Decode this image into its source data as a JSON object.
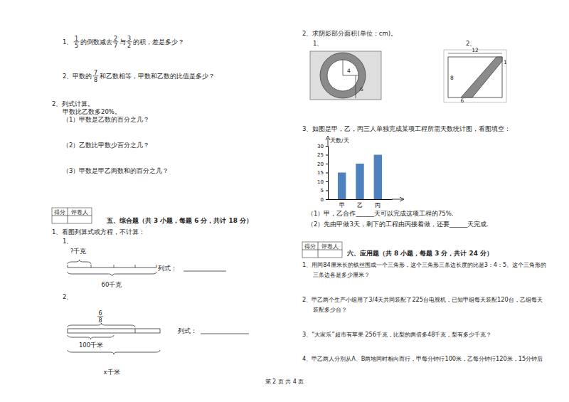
{
  "chart_data": {
    "type": "bar",
    "title": "天数/天",
    "categories": [
      "甲",
      "乙",
      "丙"
    ],
    "values": [
      15,
      20,
      25
    ],
    "color": "#4f81bd",
    "ylim": [
      0,
      30
    ],
    "yticks": [
      0,
      5,
      10,
      15,
      20,
      25,
      30
    ],
    "grid": false
  },
  "document": {
    "left": {
      "q1": [
        "1、",
        {
          "num": "1",
          "den": "5"
        },
        "的倒数减去",
        {
          "num": "2",
          "den": "7"
        },
        "与",
        {
          "num": "3",
          "den": "2"
        },
        "的积，差是多少？"
      ],
      "q2": [
        "2、甲数的",
        {
          "num": "7",
          "den": "8"
        },
        "和乙数相等，甲数和乙数的比值是多少？"
      ],
      "calc": {
        "title": "2、列式计算。",
        "given": "甲数比乙数多20%。",
        "items": [
          "（1）甲数是乙数的百分之几？",
          "（2）乙数比甲数少百分之几？",
          "（3）甲数是甲乙两数和的百分之几？"
        ]
      },
      "score_box": [
        "得分",
        "评卷人"
      ],
      "section": "五、综合题（共 3 小题，每题 6 分，共计 18 分）",
      "comp": {
        "intro": "1、看图列算式或方程，不计算：",
        "d1": {
          "num": "1、",
          "top": "?千克",
          "bottom": "60千克",
          "formula": "列式："
        },
        "d2": {
          "num": "2、",
          "frac": {
            "num": "6",
            "den": "8"
          },
          "mid": "100千米",
          "bottom": "x千米",
          "formula": "列式："
        }
      }
    },
    "right": {
      "shade": {
        "title": "2、求阴影部分面积(单位：cm)。",
        "n1": "1、",
        "n2": "2、",
        "f1": [
          "4",
          "6"
        ],
        "f2": [
          "12",
          "8",
          "6",
          "1"
        ]
      },
      "chart_q": {
        "title": "3、如图是甲，乙，丙三人单独完成某项工程所需天数统计图，看图填空：",
        "items": [
          "（1）甲，乙合作______天可以完成这项工程的75%.",
          "（2）先由甲做3天，剩下的工程由丙接着做，还要______天完成."
        ]
      },
      "score_box": [
        "得分",
        "评卷人"
      ],
      "section": "六、应用题（共 8 小题，每题 3 分，共计 24 分）",
      "apps": [
        [
          "1、用同84厘米长的铁丝围成一个三角形，这个三角形三条边长度的比是3：4：5。这个三角形的",
          "三条边各是多少厘米？"
        ],
        [
          "2、甲乙两个生产小组用了3/4天共同装配了225台电视机，已知甲组每天装配120台，乙组每天",
          "装配多少台？"
        ],
        [
          "3、“大家乐”超市有苹果 256千克，比梨的两倍多48千克，梨有多少千克？"
        ],
        [
          "4、甲乙两人分别从A、B两地同时相向而行，甲每分钟行100米，乙每分钟行120米，15分钟后"
        ]
      ]
    },
    "footer": "第 2 页 共 4 页"
  }
}
